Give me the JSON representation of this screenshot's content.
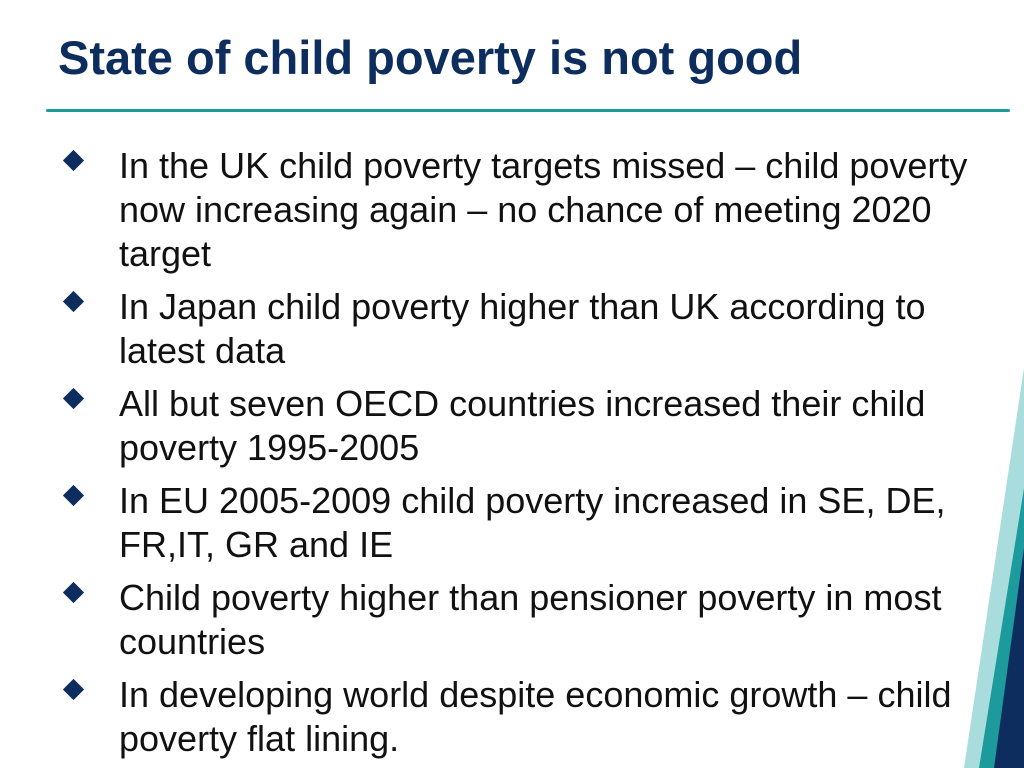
{
  "slide": {
    "title": "State of child poverty is not good",
    "bullets": [
      {
        "text": "In the UK child poverty targets missed – child poverty now increasing again – no chance of meeting 2020 target"
      },
      {
        "text": "In Japan child poverty higher than UK according to latest data"
      },
      {
        "text": "All but seven OECD countries increased their child poverty 1995-2005"
      },
      {
        "text": "In EU 2005-2009 child poverty increased in SE, DE, FR,IT, GR and IE"
      },
      {
        "text": "Child poverty higher than pensioner poverty in most countries"
      },
      {
        "text": "In developing world despite economic growth – child poverty flat lining."
      }
    ]
  },
  "colors": {
    "title": "#0c2d5e",
    "rule": "#1d9a9b",
    "bullet_marker": "#0c2d5e",
    "body_text": "#111111",
    "corner_dark": "#0c2d5e",
    "corner_teal": "#1d9a9b",
    "corner_light": "#a9dcdc"
  }
}
